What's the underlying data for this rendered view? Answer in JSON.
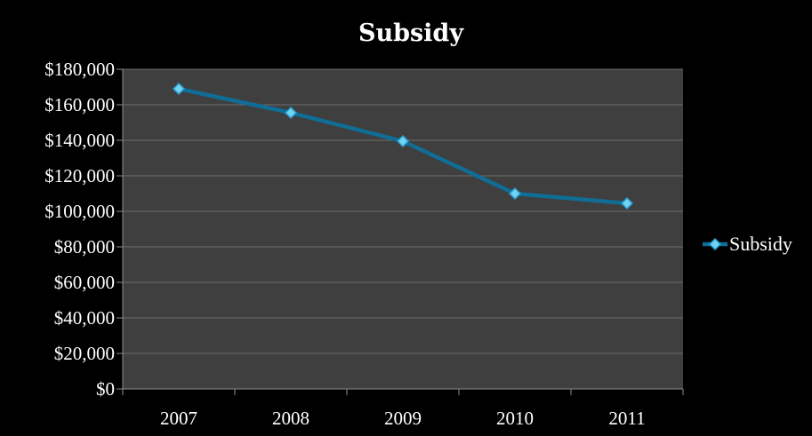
{
  "chart_data": {
    "type": "line",
    "title": "Subsidy",
    "xlabel": "",
    "ylabel": "",
    "categories": [
      "2007",
      "2008",
      "2009",
      "2010",
      "2011"
    ],
    "series": [
      {
        "name": "Subsidy",
        "values": [
          169000,
          155500,
          139500,
          110000,
          104500
        ]
      }
    ],
    "ylim": [
      0,
      180000
    ],
    "y_ticks": [
      0,
      20000,
      40000,
      60000,
      80000,
      100000,
      120000,
      140000,
      160000,
      180000
    ],
    "y_tick_labels": [
      "$0",
      "$20,000",
      "$40,000",
      "$60,000",
      "$80,000",
      "$100,000",
      "$120,000",
      "$140,000",
      "$160,000",
      "$180,000"
    ],
    "grid": true,
    "legend_position": "right",
    "colors": {
      "background": "#000000",
      "plot_area": "#3f3f3f",
      "gridline": "#6e6e6e",
      "axis": "#8c8c8c",
      "line": "#0f6d96",
      "marker_fill": "#6fd3f2",
      "marker_stroke": "#2a9bd0",
      "text": "#ffffff"
    },
    "marker": "diamond"
  }
}
